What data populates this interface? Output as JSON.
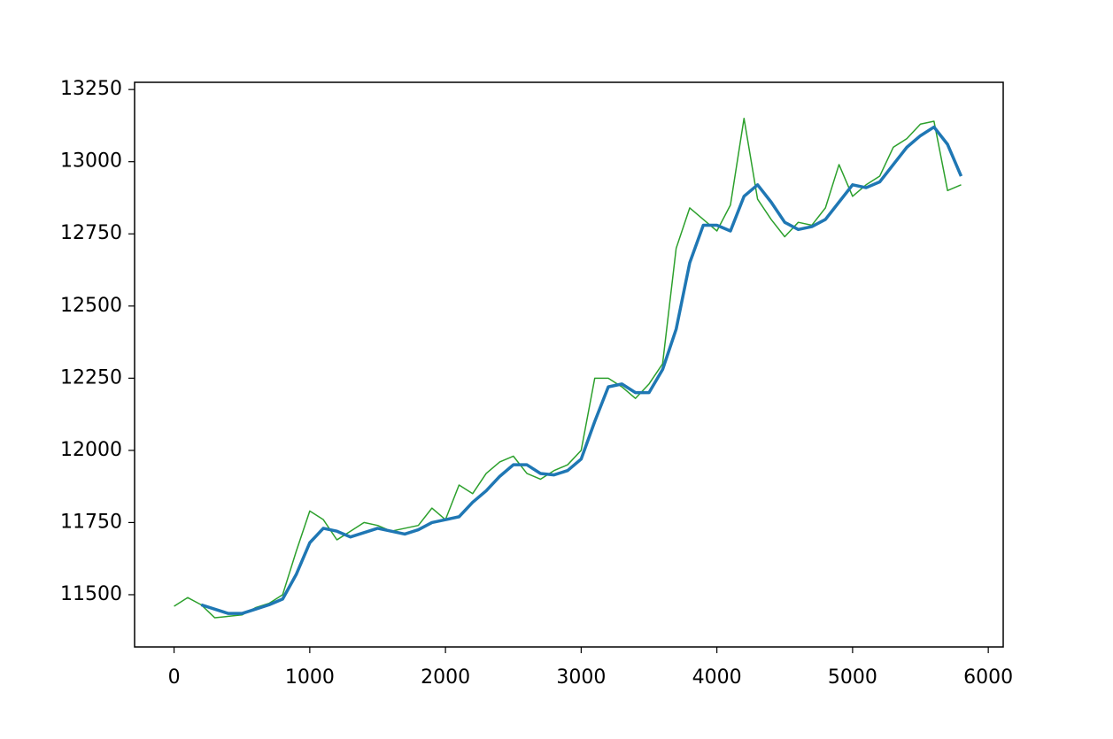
{
  "chart_data": {
    "type": "line",
    "x": [
      0,
      100,
      200,
      300,
      400,
      500,
      600,
      700,
      800,
      900,
      1000,
      1100,
      1200,
      1300,
      1400,
      1500,
      1600,
      1700,
      1800,
      1900,
      2000,
      2100,
      2200,
      2300,
      2400,
      2500,
      2600,
      2700,
      2800,
      2900,
      3000,
      3100,
      3200,
      3300,
      3400,
      3500,
      3600,
      3700,
      3800,
      3900,
      4000,
      4100,
      4200,
      4300,
      4400,
      4500,
      4600,
      4700,
      4800,
      4900,
      5000,
      5100,
      5200,
      5300,
      5400,
      5500,
      5600,
      5700,
      5800
    ],
    "series": [
      {
        "color": "#2ca02c",
        "width": 1.5,
        "values": [
          11460,
          11490,
          11465,
          11420,
          11425,
          11430,
          11455,
          11470,
          11500,
          11650,
          11790,
          11760,
          11690,
          11720,
          11750,
          11740,
          11720,
          11730,
          11740,
          11800,
          11760,
          11880,
          11850,
          11920,
          11960,
          11980,
          11920,
          11900,
          11930,
          11950,
          12000,
          12250,
          12250,
          12220,
          12180,
          12230,
          12300,
          12700,
          12840,
          12800,
          12760,
          12850,
          13150,
          12870,
          12800,
          12740,
          12790,
          12780,
          12840,
          12990,
          12880,
          12920,
          12950,
          13050,
          13080,
          13130,
          13140,
          12900,
          12920
        ]
      },
      {
        "color": "#1f77b4",
        "width": 3.5,
        "values": [
          null,
          null,
          11465,
          11450,
          11435,
          11435,
          11450,
          11465,
          11485,
          11570,
          11680,
          11730,
          11720,
          11700,
          11715,
          11730,
          11720,
          11710,
          11725,
          11750,
          11760,
          11770,
          11820,
          11860,
          11910,
          11950,
          11950,
          11920,
          11915,
          11930,
          11970,
          12100,
          12220,
          12230,
          12200,
          12200,
          12280,
          12420,
          12650,
          12780,
          12780,
          12760,
          12880,
          12920,
          12860,
          12790,
          12765,
          12775,
          12800,
          12860,
          12920,
          12910,
          12930,
          12990,
          13050,
          13090,
          13120,
          13060,
          12950
        ]
      }
    ],
    "xlim": [
      -291,
      6110
    ],
    "ylim": [
      11319,
      13275
    ],
    "xticks": [
      0,
      1000,
      2000,
      3000,
      4000,
      5000,
      6000
    ],
    "yticks": [
      11500,
      11750,
      12000,
      12250,
      12500,
      12750,
      13000,
      13250
    ]
  }
}
